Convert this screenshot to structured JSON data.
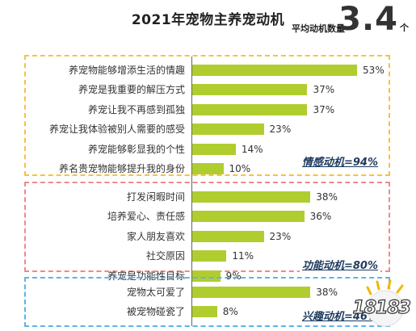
{
  "header": {
    "title": "2021年宠物主养宠动机",
    "avg_label": "平均动机数量",
    "avg_value": "3.4",
    "avg_unit": "个"
  },
  "colors": {
    "bar": "#b0cd30",
    "emotion_border": "#f5c242",
    "function_border": "#f08a8a",
    "interest_border": "#5bb6e6",
    "group_total_text": "#1f3b5e"
  },
  "chart_data": {
    "type": "bar",
    "orientation": "horizontal",
    "title": "2021年宠物主养宠动机",
    "unit": "%",
    "xlim": [
      0,
      60
    ],
    "groups": [
      {
        "name": "情感动机",
        "total_label": "情感动机=94%",
        "items": [
          {
            "label": "养宠物能够增添生活的情趣",
            "value": 53,
            "value_label": "53%"
          },
          {
            "label": "养宠是我重要的解压方式",
            "value": 37,
            "value_label": "37%"
          },
          {
            "label": "养宠让我不再感到孤独",
            "value": 37,
            "value_label": "37%"
          },
          {
            "label": "养宠让我体验被别人需要的感受",
            "value": 23,
            "value_label": "23%"
          },
          {
            "label": "养宠能够彰显我的个性",
            "value": 14,
            "value_label": "14%"
          },
          {
            "label": "养名贵宠物能够提升我的身份",
            "value": 10,
            "value_label": "10%"
          }
        ]
      },
      {
        "name": "功能动机",
        "total_label": "功能动机=80%",
        "items": [
          {
            "label": "打发闲暇时间",
            "value": 38,
            "value_label": "38%"
          },
          {
            "label": "培养爱心、责任感",
            "value": 36,
            "value_label": "36%"
          },
          {
            "label": "家人朋友喜欢",
            "value": 23,
            "value_label": "23%"
          },
          {
            "label": "社交原因",
            "value": 11,
            "value_label": "11%"
          },
          {
            "label": "养宠是功能性目标",
            "value": 9,
            "value_label": "9%"
          }
        ]
      },
      {
        "name": "兴趣动机",
        "total_label": "兴趣动机=46%",
        "items": [
          {
            "label": "宠物太可爱了",
            "value": 38,
            "value_label": "38%"
          },
          {
            "label": "被宠物碰瓷了",
            "value": 8,
            "value_label": "8%"
          }
        ]
      }
    ]
  },
  "watermark": {
    "logo_icon": "18183-logo-icon",
    "text": "18183"
  }
}
